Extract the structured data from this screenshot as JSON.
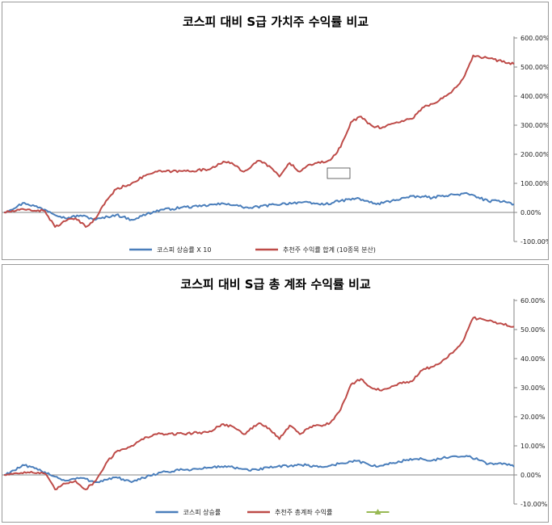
{
  "colors": {
    "kospi": "#4a7ebb",
    "recommended": "#be4b48",
    "third": "#98b954",
    "axis": "#868686",
    "frame": "#9a9a9a"
  },
  "chart_data": [
    {
      "type": "line",
      "title": "코스피 대비 S급 가치주 수익률 비교",
      "ylim": [
        -100,
        600
      ],
      "y_ticks": [
        -100,
        0,
        100,
        200,
        300,
        400,
        500,
        600
      ],
      "y_tick_labels": [
        "-100.00%",
        "0.00%",
        "100.00%",
        "200.00%",
        "300.00%",
        "400.00%",
        "500.00%",
        "600.00%"
      ],
      "y_axis_side": "right",
      "grid": false,
      "legend_position": "bottom",
      "x_count": 100,
      "series": [
        {
          "name": "코스피 상승률 X 10",
          "color": "#4a7ebb",
          "points": [
            [
              0,
              0
            ],
            [
              4,
              33
            ],
            [
              8,
              10
            ],
            [
              12,
              -20
            ],
            [
              15,
              -10
            ],
            [
              18,
              -25
            ],
            [
              22,
              -8
            ],
            [
              25,
              -25
            ],
            [
              26,
              -20
            ],
            [
              28,
              -5
            ],
            [
              31,
              10
            ],
            [
              33,
              12
            ],
            [
              35,
              18
            ],
            [
              38,
              20
            ],
            [
              41,
              27
            ],
            [
              44,
              30
            ],
            [
              46,
              22
            ],
            [
              48,
              15
            ],
            [
              53,
              27
            ],
            [
              58,
              35
            ],
            [
              61,
              30
            ],
            [
              63,
              28
            ],
            [
              66,
              40
            ],
            [
              69,
              48
            ],
            [
              71,
              40
            ],
            [
              73,
              28
            ],
            [
              76,
              40
            ],
            [
              79,
              52
            ],
            [
              82,
              55
            ],
            [
              84,
              50
            ],
            [
              86,
              58
            ],
            [
              89,
              62
            ],
            [
              91,
              64
            ],
            [
              93,
              52
            ],
            [
              95,
              38
            ],
            [
              98,
              40
            ],
            [
              100,
              28
            ]
          ]
        },
        {
          "name": "추천주 수익률 합계 (10종목 분산)",
          "color": "#be4b48",
          "points": [
            [
              0,
              0
            ],
            [
              4,
              10
            ],
            [
              8,
              5
            ],
            [
              10,
              -50
            ],
            [
              12,
              -30
            ],
            [
              14,
              -20
            ],
            [
              16,
              -50
            ],
            [
              18,
              -20
            ],
            [
              20,
              40
            ],
            [
              22,
              80
            ],
            [
              25,
              100
            ],
            [
              28,
              130
            ],
            [
              30,
              140
            ],
            [
              35,
              142
            ],
            [
              40,
              147
            ],
            [
              43,
              175
            ],
            [
              45,
              165
            ],
            [
              47,
              140
            ],
            [
              50,
              178
            ],
            [
              52,
              160
            ],
            [
              54,
              123
            ],
            [
              56,
              170
            ],
            [
              58,
              140
            ],
            [
              60,
              165
            ],
            [
              62,
              170
            ],
            [
              64,
              180
            ],
            [
              66,
              225
            ],
            [
              68,
              310
            ],
            [
              70,
              330
            ],
            [
              72,
              300
            ],
            [
              74,
              290
            ],
            [
              76,
              305
            ],
            [
              78,
              315
            ],
            [
              80,
              322
            ],
            [
              82,
              360
            ],
            [
              85,
              380
            ],
            [
              88,
              420
            ],
            [
              90,
              460
            ],
            [
              92,
              540
            ],
            [
              95,
              530
            ],
            [
              100,
              510
            ]
          ]
        }
      ],
      "legend_items": [
        {
          "name": "코스피 상승률 X 10",
          "color": "#4a7ebb"
        },
        {
          "name": "추천주 수익률 합계 (10종목 분산)",
          "color": "#be4b48"
        }
      ]
    },
    {
      "type": "line",
      "title": "코스피 대비 S급 총 계좌 수익률 비교",
      "ylim": [
        -10,
        60
      ],
      "y_ticks": [
        -10,
        0,
        10,
        20,
        30,
        40,
        50,
        60
      ],
      "y_tick_labels": [
        "-10.00%",
        "0.00%",
        "10.00%",
        "20.00%",
        "30.00%",
        "40.00%",
        "50.00%",
        "60.00%"
      ],
      "y_axis_side": "right",
      "grid": false,
      "legend_position": "bottom",
      "x_count": 100,
      "series": [
        {
          "name": "코스피 상승률",
          "color": "#4a7ebb",
          "points": [
            [
              0,
              0
            ],
            [
              4,
              3.3
            ],
            [
              8,
              1
            ],
            [
              12,
              -2
            ],
            [
              15,
              -1
            ],
            [
              18,
              -2.5
            ],
            [
              22,
              -0.8
            ],
            [
              25,
              -2.5
            ],
            [
              26,
              -2
            ],
            [
              28,
              -0.5
            ],
            [
              31,
              1
            ],
            [
              33,
              1.2
            ],
            [
              35,
              1.8
            ],
            [
              38,
              2
            ],
            [
              41,
              2.7
            ],
            [
              44,
              3
            ],
            [
              46,
              2.2
            ],
            [
              48,
              1.5
            ],
            [
              53,
              2.7
            ],
            [
              58,
              3.5
            ],
            [
              61,
              3
            ],
            [
              63,
              2.8
            ],
            [
              66,
              4
            ],
            [
              69,
              4.8
            ],
            [
              71,
              4
            ],
            [
              73,
              2.8
            ],
            [
              76,
              4
            ],
            [
              79,
              5.2
            ],
            [
              82,
              5.5
            ],
            [
              84,
              5
            ],
            [
              86,
              5.8
            ],
            [
              89,
              6.2
            ],
            [
              91,
              6.4
            ],
            [
              93,
              5.2
            ],
            [
              95,
              3.8
            ],
            [
              98,
              4
            ],
            [
              100,
              2.8
            ]
          ]
        },
        {
          "name": "추천주 총계좌 수익률",
          "color": "#be4b48",
          "points": [
            [
              0,
              0
            ],
            [
              4,
              1
            ],
            [
              8,
              0.5
            ],
            [
              10,
              -5
            ],
            [
              12,
              -3
            ],
            [
              14,
              -2
            ],
            [
              16,
              -5
            ],
            [
              18,
              -2
            ],
            [
              20,
              4
            ],
            [
              22,
              8
            ],
            [
              25,
              10
            ],
            [
              28,
              13
            ],
            [
              30,
              14
            ],
            [
              35,
              14.2
            ],
            [
              40,
              14.7
            ],
            [
              43,
              17.5
            ],
            [
              45,
              16.5
            ],
            [
              47,
              14
            ],
            [
              50,
              17.8
            ],
            [
              52,
              16
            ],
            [
              54,
              12.3
            ],
            [
              56,
              17
            ],
            [
              58,
              14
            ],
            [
              60,
              16.5
            ],
            [
              62,
              17
            ],
            [
              64,
              18
            ],
            [
              66,
              22.5
            ],
            [
              68,
              31
            ],
            [
              70,
              33
            ],
            [
              72,
              30
            ],
            [
              74,
              29
            ],
            [
              76,
              30.5
            ],
            [
              78,
              31.5
            ],
            [
              80,
              32.2
            ],
            [
              82,
              36
            ],
            [
              85,
              38
            ],
            [
              88,
              42
            ],
            [
              90,
              46
            ],
            [
              92,
              54
            ],
            [
              95,
              53
            ],
            [
              100,
              51
            ]
          ]
        },
        {
          "name": "",
          "color": "#98b954",
          "points": []
        }
      ],
      "legend_items": [
        {
          "name": "코스피 상승률",
          "color": "#4a7ebb"
        },
        {
          "name": "추천주 총계좌 수익률",
          "color": "#be4b48"
        },
        {
          "name": "",
          "color": "#98b954",
          "marker": "triangle"
        }
      ]
    }
  ]
}
